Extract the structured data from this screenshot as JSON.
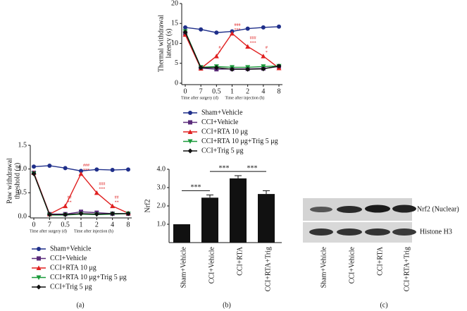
{
  "chart_data": [
    {
      "type": "line",
      "y_label": [
        "Paw withdrawal",
        "threshold (g)"
      ],
      "categories": [
        "0",
        "7",
        "0.5",
        "1",
        "2",
        "4",
        "8"
      ],
      "x_sublabels": [
        "Time after surgery (d)",
        "Time after injection (h)"
      ],
      "ylim": [
        0,
        1.5
      ],
      "yticks": [
        {
          "value": 0,
          "label": "0.0"
        },
        0.5,
        {
          "value": 1,
          "label": "1.0"
        },
        1.5
      ],
      "series": [
        {
          "name": "Sham+Vehicle",
          "color": "#1f2f8a",
          "marker": "circle",
          "values": [
            1.05,
            1.07,
            1.02,
            0.96,
            0.99,
            0.98,
            0.99
          ]
        },
        {
          "name": "CCI+Vehicle",
          "color": "#5a2a7a",
          "marker": "square",
          "values": [
            0.92,
            0.05,
            0.05,
            0.1,
            0.08,
            0.06,
            0.06
          ]
        },
        {
          "name": "CCI+RTA 10 μg",
          "color": "#e02020",
          "marker": "triangle",
          "values": [
            0.92,
            0.05,
            0.22,
            0.9,
            0.5,
            0.22,
            0.07
          ]
        },
        {
          "name": "CCI+RTA 10 μg+Trig 5 μg",
          "color": "#1a9a3a",
          "marker": "down",
          "values": [
            0.9,
            0.03,
            0.03,
            0.05,
            0.04,
            0.05,
            0.06
          ]
        },
        {
          "name": "CCI+Trig 5 μg",
          "color": "#111111",
          "marker": "diamond",
          "values": [
            0.9,
            0.04,
            0.04,
            0.06,
            0.05,
            0.06,
            0.06
          ]
        }
      ],
      "annotations": [
        {
          "category": "0.5",
          "text": [
            "##",
            "**"
          ]
        },
        {
          "category": "1",
          "text": [
            "###",
            "***"
          ]
        },
        {
          "category": "2",
          "text": [
            "###",
            "***"
          ]
        },
        {
          "category": "4",
          "text": [
            "##",
            "**"
          ]
        }
      ],
      "panel_label": "(a)"
    },
    {
      "type": "line",
      "y_label": [
        "Thermal withdrawal",
        "latency (s)"
      ],
      "categories": [
        "0",
        "7",
        "0.5",
        "1",
        "2",
        "4",
        "8"
      ],
      "x_sublabels": [
        "Time after surgery (d)",
        "Time after injection (h)"
      ],
      "ylim": [
        0,
        20
      ],
      "yticks": [
        0,
        5,
        10,
        15,
        20
      ],
      "series": [
        {
          "name": "Sham+Vehicle",
          "color": "#1f2f8a",
          "marker": "circle",
          "values": [
            14.0,
            13.5,
            12.7,
            13.0,
            13.7,
            14.0,
            14.2
          ]
        },
        {
          "name": "CCI+Vehicle",
          "color": "#5a2a7a",
          "marker": "square",
          "values": [
            12.5,
            3.8,
            3.5,
            3.6,
            3.6,
            3.7,
            4.2
          ]
        },
        {
          "name": "CCI+RTA 10 μg",
          "color": "#e02020",
          "marker": "triangle",
          "values": [
            12.2,
            3.7,
            6.8,
            12.5,
            9.2,
            6.8,
            3.8
          ]
        },
        {
          "name": "CCI+RTA 10 μg+Trig 5 μg",
          "color": "#1a9a3a",
          "marker": "down",
          "values": [
            13.0,
            4.0,
            4.2,
            4.0,
            4.0,
            4.2,
            4.3
          ]
        },
        {
          "name": "CCI+Trig 5 μg",
          "color": "#111111",
          "marker": "diamond",
          "values": [
            12.8,
            3.9,
            3.9,
            3.5,
            3.5,
            3.6,
            4.3
          ]
        }
      ],
      "annotations": [
        {
          "category": "0.5",
          "text": [
            "#",
            "*"
          ]
        },
        {
          "category": "1",
          "text": [
            "###",
            "***"
          ]
        },
        {
          "category": "2",
          "text": [
            "###",
            "***"
          ]
        },
        {
          "category": "4",
          "text": [
            "#",
            "*"
          ]
        }
      ]
    },
    {
      "type": "bar",
      "y_label": "Nrf2",
      "categories": [
        "Sham+Vehicle",
        "CCI+Vehicle",
        "CCI+RTA",
        "CCI+RTA+Trig"
      ],
      "values": [
        1.0,
        2.45,
        3.5,
        2.65
      ],
      "errors": [
        0,
        0.15,
        0.15,
        0.18
      ],
      "color": "#111111",
      "ylim": [
        0,
        4
      ],
      "yticks": [
        {
          "value": 1,
          "label": "1.0"
        },
        {
          "value": 2,
          "label": "2.0"
        },
        {
          "value": 3,
          "label": "3.0"
        },
        {
          "value": 4,
          "label": "4.0"
        }
      ],
      "comparisons": [
        {
          "between": [
            "Sham+Vehicle",
            "CCI+Vehicle"
          ],
          "label": "***"
        },
        {
          "between": [
            "CCI+Vehicle",
            "CCI+RTA"
          ],
          "label": "***"
        },
        {
          "between": [
            "CCI+RTA",
            "CCI+RTA+Trig"
          ],
          "label": "***"
        }
      ],
      "panel_label": "(b)"
    }
  ],
  "blot": {
    "labels": [
      "Nrf2 (Nuclear)",
      "Histone H3"
    ],
    "lanes": [
      "Sham+Vehicle",
      "CCI+Vehicle",
      "CCI+RTA",
      "CCI+RTA+Trig"
    ],
    "panel_label": "(c)"
  }
}
